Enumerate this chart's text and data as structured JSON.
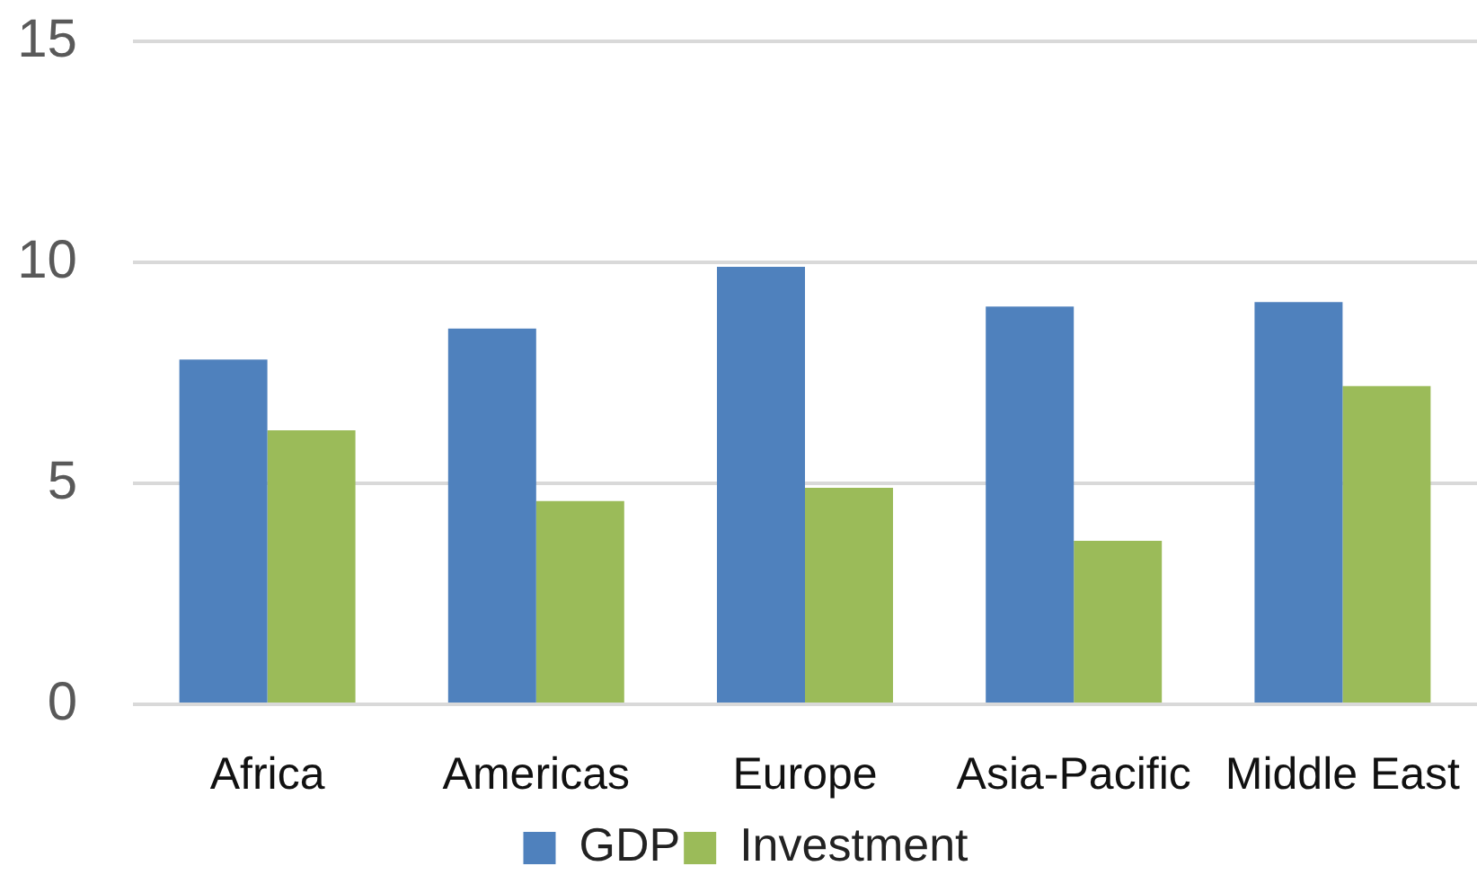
{
  "chart_data": {
    "type": "bar",
    "categories": [
      "Africa",
      "Americas",
      "Europe",
      "Asia-Pacific",
      "Middle East"
    ],
    "series": [
      {
        "name": "GDP",
        "color": "#4f81bd",
        "values": [
          7.8,
          8.5,
          9.9,
          9.0,
          9.1
        ]
      },
      {
        "name": "Investment",
        "color": "#9bbb59",
        "values": [
          6.2,
          4.6,
          4.9,
          3.7,
          7.2
        ]
      }
    ],
    "ylim": [
      0,
      15
    ],
    "yticks": [
      0,
      5,
      10,
      15
    ],
    "grid": "y",
    "legend": "bottom"
  }
}
